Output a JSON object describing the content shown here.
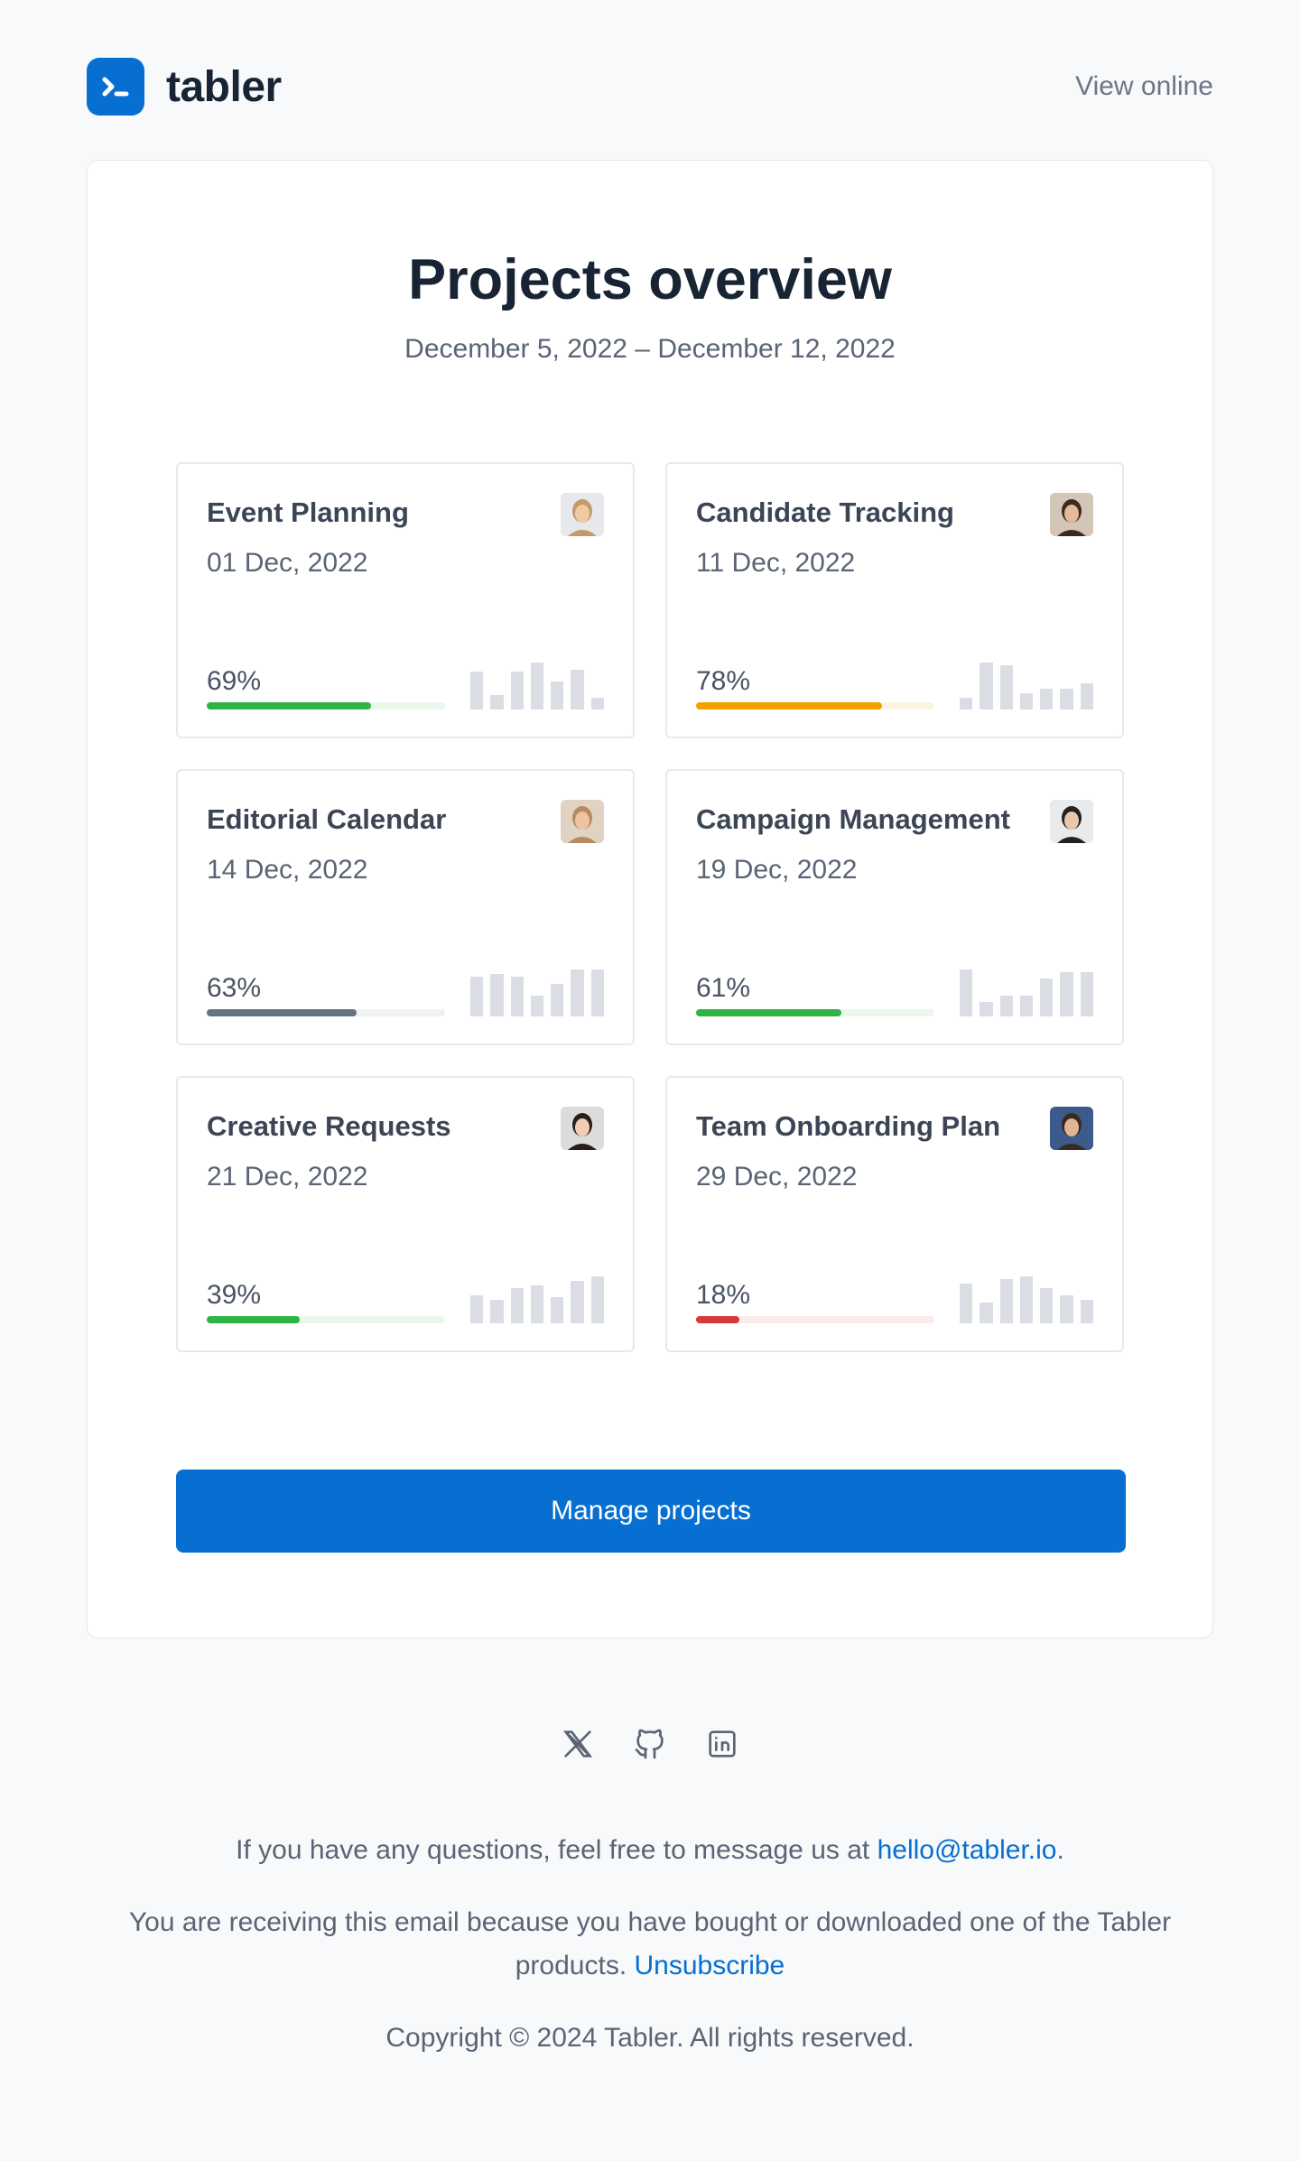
{
  "header": {
    "brand_name": "tabler",
    "view_online": "View online"
  },
  "overview": {
    "title": "Projects overview",
    "date_range": "December 5, 2022 – December 12, 2022"
  },
  "projects": [
    {
      "name": "Event Planning",
      "date": "01 Dec, 2022",
      "progress_label": "69%",
      "progress": 0.69,
      "color": "#2fb344",
      "track_color": "#e9f7ec",
      "bars": [
        0.8,
        0.3,
        0.8,
        1.0,
        0.6,
        0.85,
        0.25
      ],
      "avatar_skin": "#f0c9a5",
      "avatar_hair": "#c59a6b",
      "avatar_bg": "#e6e8ec"
    },
    {
      "name": "Candidate Tracking",
      "date": "11 Dec, 2022",
      "progress_label": "78%",
      "progress": 0.78,
      "color": "#f59f00",
      "track_color": "#fdf3e2",
      "bars": [
        0.25,
        1.0,
        0.95,
        0.35,
        0.45,
        0.45,
        0.55
      ],
      "avatar_skin": "#e7b89a",
      "avatar_hair": "#3b2a22",
      "avatar_bg": "#d4c6b6"
    },
    {
      "name": "Editorial Calendar",
      "date": "14 Dec, 2022",
      "progress_label": "63%",
      "progress": 0.63,
      "color": "#667382",
      "track_color": "#f0f1f3",
      "bars": [
        0.85,
        0.9,
        0.85,
        0.45,
        0.7,
        1.0,
        1.0
      ],
      "avatar_skin": "#efc3a3",
      "avatar_hair": "#b78a5f",
      "avatar_bg": "#e1d3c4"
    },
    {
      "name": "Campaign Management",
      "date": "19 Dec, 2022",
      "progress_label": "61%",
      "progress": 0.61,
      "color": "#2fb344",
      "track_color": "#e9f7ec",
      "bars": [
        1.0,
        0.3,
        0.45,
        0.45,
        0.8,
        0.95,
        0.95
      ],
      "avatar_skin": "#e9c7ae",
      "avatar_hair": "#222222",
      "avatar_bg": "#e9eaec"
    },
    {
      "name": "Creative Requests",
      "date": "21 Dec, 2022",
      "progress_label": "39%",
      "progress": 0.39,
      "color": "#2fb344",
      "track_color": "#e9f7ec",
      "bars": [
        0.6,
        0.5,
        0.75,
        0.8,
        0.55,
        0.9,
        1.0
      ],
      "avatar_skin": "#f1cdb5",
      "avatar_hair": "#2a1e1a",
      "avatar_bg": "#dcdcdc"
    },
    {
      "name": "Team Onboarding Plan",
      "date": "29 Dec, 2022",
      "progress_label": "18%",
      "progress": 0.18,
      "color": "#d63939",
      "track_color": "#fbebeb",
      "bars": [
        0.85,
        0.45,
        0.95,
        1.0,
        0.75,
        0.6,
        0.5
      ],
      "avatar_skin": "#e2b595",
      "avatar_hair": "#3a2a20",
      "avatar_bg": "#3c5a8c"
    }
  ],
  "cta": {
    "label": "Manage projects"
  },
  "footer": {
    "questions_text": "If you have any questions, feel free to message us at ",
    "email": "hello@tabler.io",
    "questions_end": ".",
    "receiving_text": "You are receiving this email because you have bought or downloaded one of the Tabler products. ",
    "unsubscribe": "Unsubscribe",
    "copyright": "Copyright © 2024 Tabler. All rights reserved."
  },
  "socials": [
    "x-icon",
    "github-icon",
    "linkedin-icon"
  ]
}
